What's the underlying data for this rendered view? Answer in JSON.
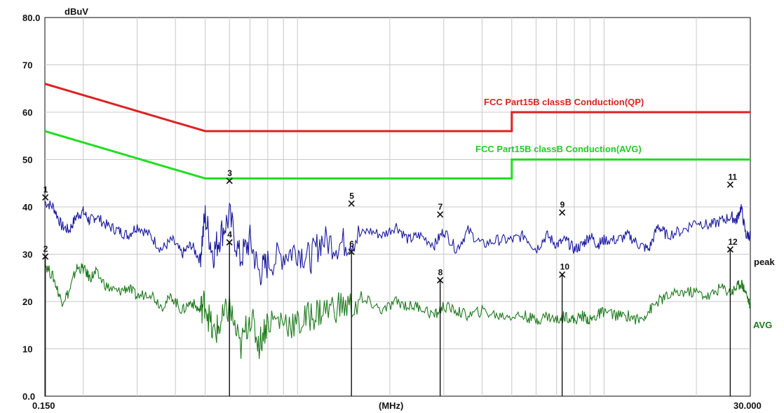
{
  "chart_data": {
    "type": "line",
    "title": "",
    "xlabel": "(MHz)",
    "ylabel": "dBuV",
    "xscale": "log",
    "xlim": [
      0.15,
      30.0
    ],
    "ylim": [
      0,
      80
    ],
    "x_tick_labels": [
      "0.150",
      "(MHz)",
      "30.000"
    ],
    "y_ticks": [
      0,
      10,
      20,
      30,
      40,
      50,
      60,
      70,
      80
    ],
    "y_tick_labels": [
      "0.0",
      "10",
      "20",
      "30",
      "40",
      "50",
      "60",
      "70",
      "80.0"
    ],
    "grid": true,
    "limit_lines": [
      {
        "name": "FCC  Part15B classB Conduction(QP)",
        "color": "#dd2222",
        "points": [
          [
            0.15,
            66
          ],
          [
            0.5,
            56
          ],
          [
            5.0,
            56
          ],
          [
            5.0,
            60
          ],
          [
            30.0,
            60
          ]
        ]
      },
      {
        "name": "FCC  Part15B classB Conduction(AVG)",
        "color": "#22dd22",
        "points": [
          [
            0.15,
            56
          ],
          [
            0.5,
            46
          ],
          [
            5.0,
            46
          ],
          [
            5.0,
            50
          ],
          [
            30.0,
            50
          ]
        ]
      }
    ],
    "series": [
      {
        "name": "peak",
        "color": "#1a1aa0",
        "x": [
          0.15,
          0.16,
          0.17,
          0.18,
          0.19,
          0.2,
          0.21,
          0.22,
          0.24,
          0.26,
          0.28,
          0.3,
          0.33,
          0.36,
          0.39,
          0.42,
          0.45,
          0.48,
          0.5,
          0.53,
          0.56,
          0.6,
          0.65,
          0.7,
          0.75,
          0.8,
          0.9,
          1.0,
          1.1,
          1.2,
          1.35,
          1.5,
          1.7,
          1.9,
          2.1,
          2.3,
          2.5,
          2.8,
          3.0,
          3.3,
          3.6,
          4.0,
          4.5,
          5.0,
          5.5,
          6.0,
          6.5,
          7.0,
          7.5,
          8.0,
          8.5,
          9.0,
          9.5,
          10.0,
          11.0,
          12.0,
          13.0,
          14.0,
          15.0,
          16.0,
          18.0,
          20.0,
          22.0,
          24.0,
          26.0,
          27.0,
          28.0,
          29.0,
          30.0
        ],
        "y": [
          41,
          40,
          36,
          35,
          38,
          39,
          37,
          38,
          36,
          35,
          34,
          36,
          34,
          31,
          33,
          30,
          32,
          29,
          38,
          30,
          34,
          38,
          29,
          33,
          26,
          28,
          30,
          31,
          29,
          33,
          32,
          33,
          35,
          34,
          36,
          33,
          34,
          32,
          35,
          31,
          35,
          32,
          33,
          33,
          34,
          31,
          34,
          32,
          33,
          31,
          32,
          34,
          32,
          33,
          33,
          34,
          32,
          31,
          36,
          34,
          35,
          37,
          36,
          37,
          38,
          37,
          40,
          34,
          34
        ]
      },
      {
        "name": "AVG",
        "color": "#1e7a1e",
        "x": [
          0.15,
          0.16,
          0.17,
          0.18,
          0.19,
          0.2,
          0.21,
          0.22,
          0.24,
          0.26,
          0.28,
          0.3,
          0.33,
          0.36,
          0.39,
          0.42,
          0.45,
          0.48,
          0.5,
          0.53,
          0.56,
          0.6,
          0.65,
          0.7,
          0.75,
          0.8,
          0.9,
          1.0,
          1.1,
          1.2,
          1.35,
          1.5,
          1.7,
          1.9,
          2.1,
          2.3,
          2.5,
          2.8,
          3.0,
          3.3,
          3.6,
          4.0,
          4.5,
          5.0,
          5.5,
          6.0,
          6.5,
          7.0,
          7.5,
          8.0,
          8.5,
          9.0,
          9.5,
          10.0,
          11.0,
          12.0,
          13.0,
          14.0,
          15.0,
          16.0,
          18.0,
          20.0,
          22.0,
          24.0,
          26.0,
          27.0,
          28.0,
          29.0,
          30.0
        ],
        "y": [
          28,
          25,
          20,
          22,
          27,
          27,
          25,
          26,
          23,
          22,
          23,
          21,
          22,
          19,
          21,
          18,
          20,
          18,
          20,
          13,
          15,
          19,
          10,
          17,
          11,
          16,
          16,
          15,
          17,
          18,
          19,
          19,
          20,
          18,
          20,
          19,
          19,
          17,
          19,
          18,
          17,
          18,
          17,
          17,
          17,
          16,
          17,
          16,
          17,
          16,
          17,
          16,
          17,
          18,
          17,
          17,
          16,
          18,
          20,
          21,
          22,
          22,
          21,
          23,
          22,
          23,
          24,
          22,
          19
        ]
      }
    ],
    "markers": [
      {
        "label": "1",
        "x": 0.1505,
        "y": 42.0
      },
      {
        "label": "2",
        "x": 0.1505,
        "y": 29.5
      },
      {
        "label": "3",
        "x": 0.6,
        "y": 45.5
      },
      {
        "label": "4",
        "x": 0.6,
        "y": 32.5
      },
      {
        "label": "5",
        "x": 1.5,
        "y": 40.7
      },
      {
        "label": "6",
        "x": 1.5,
        "y": 30.5
      },
      {
        "label": "7",
        "x": 2.92,
        "y": 38.4
      },
      {
        "label": "8",
        "x": 2.92,
        "y": 24.5
      },
      {
        "label": "9",
        "x": 7.3,
        "y": 38.8
      },
      {
        "label": "10",
        "x": 7.3,
        "y": 25.7
      },
      {
        "label": "11",
        "x": 25.8,
        "y": 44.7
      },
      {
        "label": "12",
        "x": 25.8,
        "y": 31.0
      }
    ],
    "series_end_labels": [
      "peak",
      "AVG"
    ]
  }
}
